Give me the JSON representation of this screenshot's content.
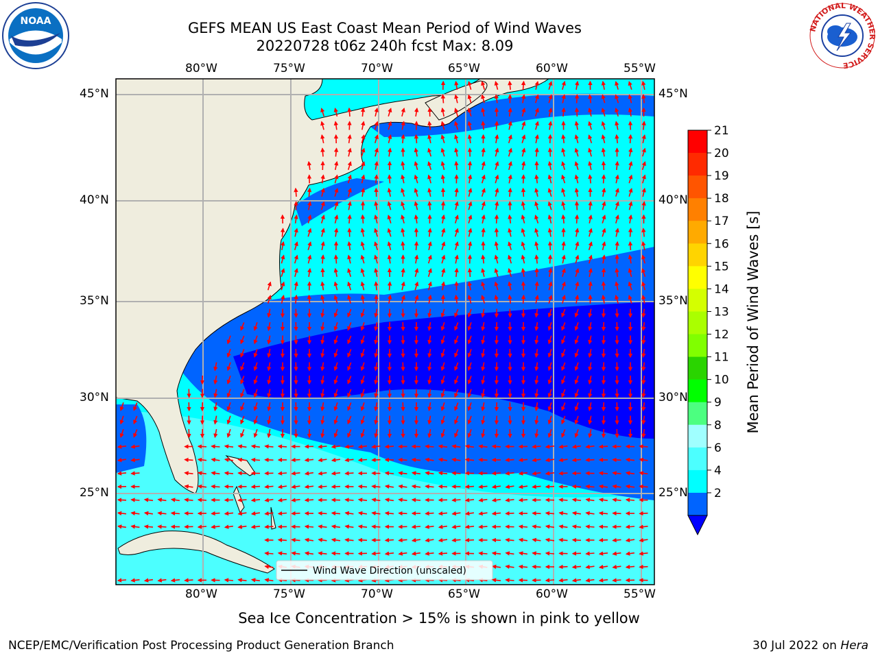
{
  "title": {
    "line1": "GEFS MEAN US East Coast Mean Period of Wind Waves",
    "line2": "20220728 t06z 240h fcst   Max: 8.09"
  },
  "map": {
    "lon_labels": [
      "80°W",
      "75°W",
      "70°W",
      "65°W",
      "60°W",
      "55°W"
    ],
    "lat_labels": [
      "45°N",
      "40°N",
      "35°N",
      "30°N",
      "25°N"
    ],
    "legend_label": "Wind Wave Direction (unscaled)",
    "colors": {
      "land": "#efedde",
      "band_2_4": "#0064ff",
      "band_0_2": "#0000ff",
      "band_4_6": "#00ffff",
      "band_6_8": "#4cffff",
      "arrow": "#ff0000"
    }
  },
  "colorbar": {
    "label": "Mean Period of Wind Waves [s]",
    "ticks": [
      "21",
      "20",
      "19",
      "18",
      "17",
      "16",
      "15",
      "14",
      "13",
      "12",
      "11",
      "10",
      "9",
      "8",
      "6",
      "4",
      "2"
    ],
    "colors": [
      "#ff0000",
      "#ff2a00",
      "#ff5500",
      "#ff8000",
      "#ffaa00",
      "#ffd400",
      "#ffff00",
      "#d4ff00",
      "#aaff00",
      "#80ff00",
      "#2ad400",
      "#00ff00",
      "#4cff80",
      "#a0ffff",
      "#4cffff",
      "#00ffff",
      "#0064ff"
    ],
    "extend_color": "#0000ff"
  },
  "logos": {
    "left": "NOAA",
    "right_ring": "NATIONAL WEATHER SERVICE"
  },
  "bottom_note": "Sea Ice Concentration > 15% is shown in pink to yellow",
  "footer": {
    "left": "NCEP/EMC/Verification Post Processing Product Generation Branch",
    "right_date": "30 Jul 2022 on",
    "right_machine": "Hera"
  }
}
